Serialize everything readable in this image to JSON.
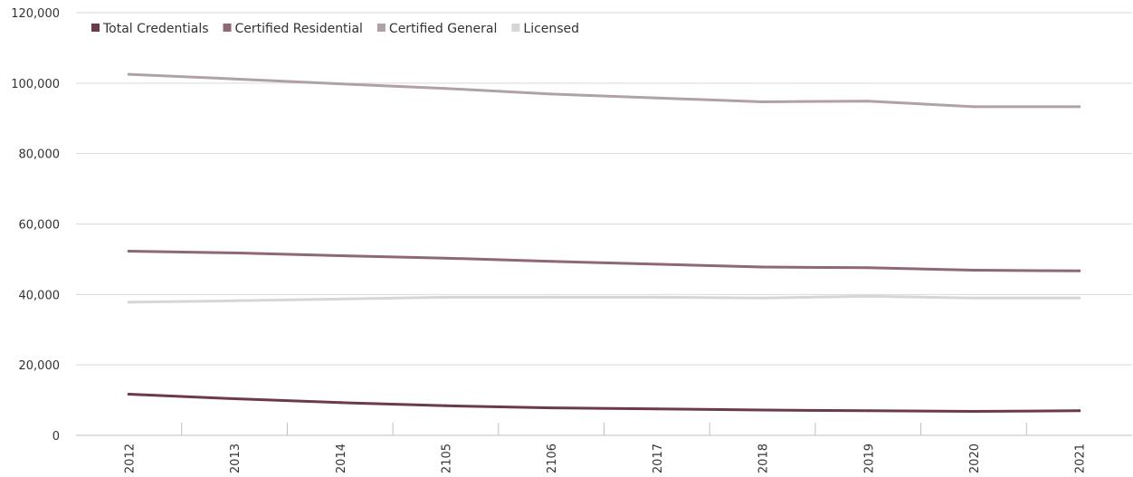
{
  "chart_data": {
    "type": "line",
    "categories": [
      "2012",
      "2013",
      "2014",
      "2105",
      "2106",
      "2017",
      "2018",
      "2019",
      "2020",
      "2021"
    ],
    "ylim": [
      0,
      120000
    ],
    "yticks": [
      0,
      20000,
      40000,
      60000,
      80000,
      100000,
      120000
    ],
    "ytick_labels": [
      "0",
      "20,000",
      "40,000",
      "60,000",
      "80,000",
      "100,000",
      "120,000"
    ],
    "grid": true,
    "legend_position": "top-left",
    "series": [
      {
        "name": "Total Credentials",
        "color": "#6b3a4c",
        "values": [
          11700,
          10400,
          9300,
          8400,
          7800,
          7500,
          7200,
          7000,
          6800,
          7000
        ]
      },
      {
        "name": "Certified Residential",
        "color": "#8f6775",
        "values": [
          52300,
          51800,
          51000,
          50300,
          49400,
          48600,
          47800,
          47600,
          46900,
          46700
        ]
      },
      {
        "name": "Certified General",
        "color": "#b0a1a7",
        "values": [
          102500,
          101200,
          99800,
          98500,
          96900,
          95800,
          94700,
          94900,
          93300,
          93300
        ]
      },
      {
        "name": "Licensed",
        "color": "#d8d5d6",
        "values": [
          37800,
          38200,
          38700,
          39200,
          39200,
          39200,
          39000,
          39500,
          39000,
          39000
        ]
      }
    ]
  }
}
